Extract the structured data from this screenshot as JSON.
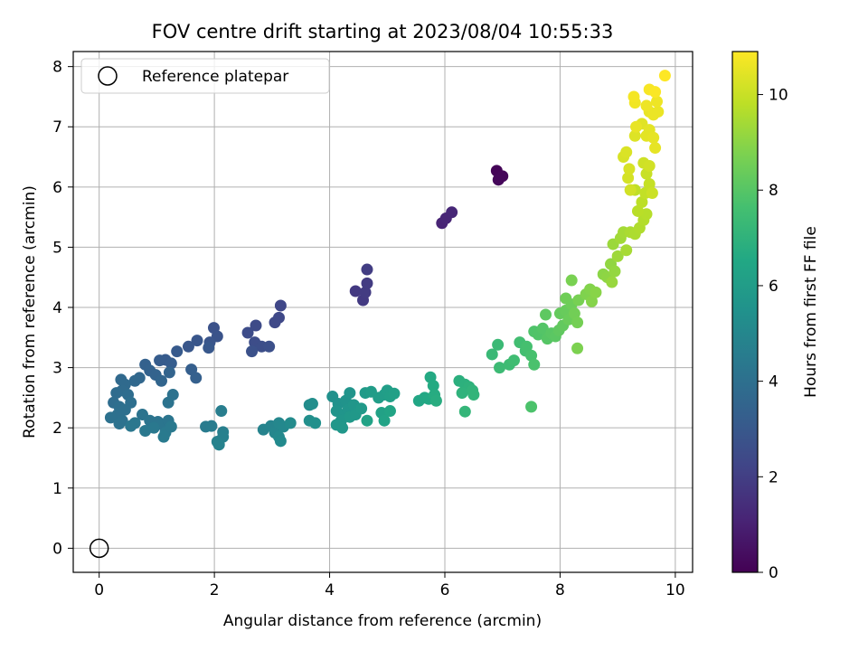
{
  "chart_data": {
    "type": "scatter",
    "title": "FOV centre drift starting at 2023/08/04 10:55:33",
    "xlabel": "Angular distance from reference (arcmin)",
    "ylabel": "Rotation from reference (arcmin)",
    "xlim": [
      -0.45,
      10.3
    ],
    "ylim": [
      -0.4,
      8.25
    ],
    "xticks": [
      0,
      2,
      4,
      6,
      8,
      10
    ],
    "yticks": [
      0,
      1,
      2,
      3,
      4,
      5,
      6,
      7,
      8
    ],
    "grid": true,
    "legend": {
      "placement": "top-left",
      "entries": [
        "Reference platepar"
      ]
    },
    "reference_point": {
      "x": 0,
      "y": 0,
      "label": "Reference platepar"
    },
    "colorbar": {
      "label": "Hours from first FF file",
      "min": 0,
      "max": 10.9,
      "ticks": [
        0,
        2,
        4,
        6,
        8,
        10
      ],
      "colormap": "viridis"
    },
    "points": [
      {
        "x": 6.9,
        "y": 6.27,
        "t": 0.1
      },
      {
        "x": 7.0,
        "y": 6.18,
        "t": 0.15
      },
      {
        "x": 6.93,
        "y": 6.12,
        "t": 0.2
      },
      {
        "x": 5.95,
        "y": 5.4,
        "t": 1.1
      },
      {
        "x": 6.02,
        "y": 5.48,
        "t": 1.15
      },
      {
        "x": 6.12,
        "y": 5.58,
        "t": 1.2
      },
      {
        "x": 4.45,
        "y": 4.27,
        "t": 1.8
      },
      {
        "x": 4.58,
        "y": 4.12,
        "t": 1.85
      },
      {
        "x": 4.62,
        "y": 4.25,
        "t": 1.9
      },
      {
        "x": 4.65,
        "y": 4.4,
        "t": 1.9
      },
      {
        "x": 4.65,
        "y": 4.63,
        "t": 1.95
      },
      {
        "x": 3.15,
        "y": 4.03,
        "t": 2.3
      },
      {
        "x": 3.12,
        "y": 3.83,
        "t": 2.35
      },
      {
        "x": 3.05,
        "y": 3.75,
        "t": 2.4
      },
      {
        "x": 2.72,
        "y": 3.7,
        "t": 2.45
      },
      {
        "x": 2.58,
        "y": 3.58,
        "t": 2.5
      },
      {
        "x": 2.7,
        "y": 3.42,
        "t": 2.55
      },
      {
        "x": 2.82,
        "y": 3.35,
        "t": 2.6
      },
      {
        "x": 2.95,
        "y": 3.35,
        "t": 2.65
      },
      {
        "x": 2.65,
        "y": 3.27,
        "t": 2.7
      },
      {
        "x": 1.99,
        "y": 3.66,
        "t": 2.75
      },
      {
        "x": 2.05,
        "y": 3.52,
        "t": 2.8
      },
      {
        "x": 1.92,
        "y": 3.42,
        "t": 2.85
      },
      {
        "x": 1.7,
        "y": 3.45,
        "t": 2.9
      },
      {
        "x": 1.55,
        "y": 3.35,
        "t": 2.95
      },
      {
        "x": 1.9,
        "y": 3.33,
        "t": 3.0
      },
      {
        "x": 1.35,
        "y": 3.27,
        "t": 3.05
      },
      {
        "x": 1.15,
        "y": 3.13,
        "t": 3.1
      },
      {
        "x": 1.05,
        "y": 3.12,
        "t": 3.15
      },
      {
        "x": 1.25,
        "y": 3.07,
        "t": 3.2
      },
      {
        "x": 1.6,
        "y": 2.97,
        "t": 3.25
      },
      {
        "x": 1.68,
        "y": 2.83,
        "t": 3.3
      },
      {
        "x": 0.8,
        "y": 3.05,
        "t": 3.35
      },
      {
        "x": 0.88,
        "y": 2.95,
        "t": 3.4
      },
      {
        "x": 0.98,
        "y": 2.88,
        "t": 3.45
      },
      {
        "x": 1.22,
        "y": 2.92,
        "t": 3.5
      },
      {
        "x": 1.08,
        "y": 2.78,
        "t": 3.55
      },
      {
        "x": 0.7,
        "y": 2.83,
        "t": 3.6
      },
      {
        "x": 0.62,
        "y": 2.78,
        "t": 3.65
      },
      {
        "x": 0.38,
        "y": 2.8,
        "t": 3.7
      },
      {
        "x": 0.45,
        "y": 2.72,
        "t": 3.75
      },
      {
        "x": 0.4,
        "y": 2.62,
        "t": 3.8
      },
      {
        "x": 0.3,
        "y": 2.58,
        "t": 3.85
      },
      {
        "x": 0.5,
        "y": 2.55,
        "t": 3.9
      },
      {
        "x": 0.25,
        "y": 2.42,
        "t": 3.9
      },
      {
        "x": 0.35,
        "y": 2.35,
        "t": 3.95
      },
      {
        "x": 0.55,
        "y": 2.42,
        "t": 3.95
      },
      {
        "x": 0.45,
        "y": 2.3,
        "t": 4.0
      },
      {
        "x": 0.32,
        "y": 2.22,
        "t": 4.0
      },
      {
        "x": 0.2,
        "y": 2.17,
        "t": 4.05
      },
      {
        "x": 0.4,
        "y": 2.12,
        "t": 4.05
      },
      {
        "x": 0.35,
        "y": 2.07,
        "t": 4.1
      },
      {
        "x": 1.28,
        "y": 2.55,
        "t": 4.1
      },
      {
        "x": 1.2,
        "y": 2.42,
        "t": 4.15
      },
      {
        "x": 0.75,
        "y": 2.22,
        "t": 4.15
      },
      {
        "x": 0.88,
        "y": 2.12,
        "t": 4.2
      },
      {
        "x": 1.02,
        "y": 2.1,
        "t": 4.2
      },
      {
        "x": 1.1,
        "y": 2.05,
        "t": 4.25
      },
      {
        "x": 1.2,
        "y": 2.12,
        "t": 4.25
      },
      {
        "x": 0.62,
        "y": 2.08,
        "t": 4.3
      },
      {
        "x": 0.55,
        "y": 2.03,
        "t": 4.3
      },
      {
        "x": 0.95,
        "y": 2.0,
        "t": 4.35
      },
      {
        "x": 0.8,
        "y": 1.95,
        "t": 4.35
      },
      {
        "x": 1.15,
        "y": 1.92,
        "t": 4.4
      },
      {
        "x": 1.25,
        "y": 2.02,
        "t": 4.4
      },
      {
        "x": 1.12,
        "y": 1.85,
        "t": 4.45
      },
      {
        "x": 1.85,
        "y": 2.02,
        "t": 4.5
      },
      {
        "x": 1.95,
        "y": 2.03,
        "t": 4.55
      },
      {
        "x": 2.12,
        "y": 2.28,
        "t": 4.6
      },
      {
        "x": 2.15,
        "y": 1.93,
        "t": 4.65
      },
      {
        "x": 2.15,
        "y": 1.85,
        "t": 4.7
      },
      {
        "x": 2.05,
        "y": 1.77,
        "t": 4.75
      },
      {
        "x": 2.08,
        "y": 1.72,
        "t": 4.8
      },
      {
        "x": 2.85,
        "y": 1.97,
        "t": 4.85
      },
      {
        "x": 2.98,
        "y": 2.03,
        "t": 4.9
      },
      {
        "x": 3.05,
        "y": 1.92,
        "t": 4.95
      },
      {
        "x": 3.12,
        "y": 2.08,
        "t": 5.0
      },
      {
        "x": 3.2,
        "y": 2.02,
        "t": 5.05
      },
      {
        "x": 3.12,
        "y": 1.85,
        "t": 5.1
      },
      {
        "x": 3.15,
        "y": 1.78,
        "t": 5.15
      },
      {
        "x": 3.32,
        "y": 2.08,
        "t": 5.2
      },
      {
        "x": 3.65,
        "y": 2.38,
        "t": 5.25
      },
      {
        "x": 3.7,
        "y": 2.4,
        "t": 5.3
      },
      {
        "x": 3.65,
        "y": 2.12,
        "t": 5.35
      },
      {
        "x": 3.75,
        "y": 2.08,
        "t": 5.4
      },
      {
        "x": 4.05,
        "y": 2.52,
        "t": 5.45
      },
      {
        "x": 4.15,
        "y": 2.4,
        "t": 5.5
      },
      {
        "x": 4.28,
        "y": 2.45,
        "t": 5.55
      },
      {
        "x": 4.35,
        "y": 2.58,
        "t": 5.6
      },
      {
        "x": 4.12,
        "y": 2.28,
        "t": 5.6
      },
      {
        "x": 4.25,
        "y": 2.22,
        "t": 5.65
      },
      {
        "x": 4.32,
        "y": 2.3,
        "t": 5.65
      },
      {
        "x": 4.42,
        "y": 2.38,
        "t": 5.7
      },
      {
        "x": 4.2,
        "y": 2.12,
        "t": 5.7
      },
      {
        "x": 4.12,
        "y": 2.05,
        "t": 5.75
      },
      {
        "x": 4.22,
        "y": 2.0,
        "t": 5.75
      },
      {
        "x": 4.35,
        "y": 2.18,
        "t": 5.8
      },
      {
        "x": 4.45,
        "y": 2.22,
        "t": 5.8
      },
      {
        "x": 4.55,
        "y": 2.32,
        "t": 5.85
      },
      {
        "x": 4.62,
        "y": 2.58,
        "t": 5.9
      },
      {
        "x": 4.72,
        "y": 2.6,
        "t": 5.95
      },
      {
        "x": 4.85,
        "y": 2.5,
        "t": 6.0
      },
      {
        "x": 4.95,
        "y": 2.55,
        "t": 6.0
      },
      {
        "x": 5.0,
        "y": 2.62,
        "t": 6.05
      },
      {
        "x": 5.05,
        "y": 2.52,
        "t": 6.1
      },
      {
        "x": 5.12,
        "y": 2.57,
        "t": 6.15
      },
      {
        "x": 4.9,
        "y": 2.25,
        "t": 6.2
      },
      {
        "x": 4.65,
        "y": 2.12,
        "t": 6.25
      },
      {
        "x": 4.95,
        "y": 2.12,
        "t": 6.3
      },
      {
        "x": 5.05,
        "y": 2.28,
        "t": 6.35
      },
      {
        "x": 5.55,
        "y": 2.45,
        "t": 6.45
      },
      {
        "x": 5.65,
        "y": 2.5,
        "t": 6.5
      },
      {
        "x": 5.72,
        "y": 2.48,
        "t": 6.55
      },
      {
        "x": 5.75,
        "y": 2.84,
        "t": 6.6
      },
      {
        "x": 5.8,
        "y": 2.7,
        "t": 6.65
      },
      {
        "x": 5.82,
        "y": 2.55,
        "t": 6.7
      },
      {
        "x": 5.85,
        "y": 2.45,
        "t": 6.75
      },
      {
        "x": 6.25,
        "y": 2.78,
        "t": 6.85
      },
      {
        "x": 6.35,
        "y": 2.72,
        "t": 6.9
      },
      {
        "x": 6.42,
        "y": 2.68,
        "t": 6.95
      },
      {
        "x": 6.3,
        "y": 2.58,
        "t": 7.0
      },
      {
        "x": 6.48,
        "y": 2.62,
        "t": 7.05
      },
      {
        "x": 6.5,
        "y": 2.55,
        "t": 7.1
      },
      {
        "x": 6.35,
        "y": 2.27,
        "t": 7.15
      },
      {
        "x": 6.82,
        "y": 3.22,
        "t": 7.3
      },
      {
        "x": 6.92,
        "y": 3.38,
        "t": 7.35
      },
      {
        "x": 6.95,
        "y": 3.0,
        "t": 7.4
      },
      {
        "x": 7.12,
        "y": 3.05,
        "t": 7.45
      },
      {
        "x": 7.2,
        "y": 3.12,
        "t": 7.5
      },
      {
        "x": 7.3,
        "y": 3.42,
        "t": 7.55
      },
      {
        "x": 7.4,
        "y": 3.28,
        "t": 7.6
      },
      {
        "x": 7.42,
        "y": 3.35,
        "t": 7.65
      },
      {
        "x": 7.5,
        "y": 3.2,
        "t": 7.7
      },
      {
        "x": 7.55,
        "y": 3.05,
        "t": 7.75
      },
      {
        "x": 7.5,
        "y": 2.35,
        "t": 7.8
      },
      {
        "x": 7.55,
        "y": 3.6,
        "t": 7.85
      },
      {
        "x": 7.62,
        "y": 3.55,
        "t": 7.9
      },
      {
        "x": 7.7,
        "y": 3.65,
        "t": 7.95
      },
      {
        "x": 7.78,
        "y": 3.48,
        "t": 8.0
      },
      {
        "x": 7.85,
        "y": 3.57,
        "t": 8.05
      },
      {
        "x": 7.92,
        "y": 3.52,
        "t": 8.1
      },
      {
        "x": 7.75,
        "y": 3.88,
        "t": 8.15
      },
      {
        "x": 7.98,
        "y": 3.62,
        "t": 8.2
      },
      {
        "x": 8.05,
        "y": 3.7,
        "t": 8.25
      },
      {
        "x": 8.0,
        "y": 3.9,
        "t": 8.3
      },
      {
        "x": 8.1,
        "y": 3.95,
        "t": 8.35
      },
      {
        "x": 8.15,
        "y": 3.8,
        "t": 8.4
      },
      {
        "x": 8.2,
        "y": 4.05,
        "t": 8.45
      },
      {
        "x": 8.1,
        "y": 4.15,
        "t": 8.5
      },
      {
        "x": 8.25,
        "y": 3.9,
        "t": 8.55
      },
      {
        "x": 8.3,
        "y": 3.75,
        "t": 8.6
      },
      {
        "x": 8.32,
        "y": 4.12,
        "t": 8.65
      },
      {
        "x": 8.2,
        "y": 4.45,
        "t": 8.7
      },
      {
        "x": 8.3,
        "y": 3.32,
        "t": 8.75
      },
      {
        "x": 8.45,
        "y": 4.22,
        "t": 8.8
      },
      {
        "x": 8.52,
        "y": 4.3,
        "t": 8.85
      },
      {
        "x": 8.55,
        "y": 4.1,
        "t": 8.9
      },
      {
        "x": 8.62,
        "y": 4.25,
        "t": 8.95
      },
      {
        "x": 8.75,
        "y": 4.55,
        "t": 9.0
      },
      {
        "x": 8.82,
        "y": 4.5,
        "t": 9.05
      },
      {
        "x": 8.88,
        "y": 4.72,
        "t": 9.1
      },
      {
        "x": 8.95,
        "y": 4.6,
        "t": 9.15
      },
      {
        "x": 8.9,
        "y": 4.42,
        "t": 9.2
      },
      {
        "x": 8.92,
        "y": 5.05,
        "t": 9.25
      },
      {
        "x": 9.0,
        "y": 4.85,
        "t": 9.3
      },
      {
        "x": 9.05,
        "y": 5.15,
        "t": 9.35
      },
      {
        "x": 9.1,
        "y": 5.25,
        "t": 9.4
      },
      {
        "x": 9.15,
        "y": 4.95,
        "t": 9.45
      },
      {
        "x": 9.22,
        "y": 5.25,
        "t": 9.5
      },
      {
        "x": 9.3,
        "y": 5.22,
        "t": 9.55
      },
      {
        "x": 9.38,
        "y": 5.32,
        "t": 9.6
      },
      {
        "x": 9.45,
        "y": 5.45,
        "t": 9.65
      },
      {
        "x": 9.5,
        "y": 5.55,
        "t": 9.7
      },
      {
        "x": 9.35,
        "y": 5.6,
        "t": 9.75
      },
      {
        "x": 9.42,
        "y": 5.75,
        "t": 9.8
      },
      {
        "x": 9.3,
        "y": 5.95,
        "t": 9.85
      },
      {
        "x": 9.48,
        "y": 5.9,
        "t": 9.9
      },
      {
        "x": 9.55,
        "y": 6.05,
        "t": 9.95
      },
      {
        "x": 9.5,
        "y": 6.22,
        "t": 10.0
      },
      {
        "x": 9.6,
        "y": 5.9,
        "t": 10.05
      },
      {
        "x": 9.45,
        "y": 6.4,
        "t": 10.1
      },
      {
        "x": 9.55,
        "y": 6.35,
        "t": 10.15
      },
      {
        "x": 9.22,
        "y": 5.95,
        "t": 10.15
      },
      {
        "x": 9.18,
        "y": 6.15,
        "t": 10.2
      },
      {
        "x": 9.2,
        "y": 6.3,
        "t": 10.25
      },
      {
        "x": 9.1,
        "y": 6.5,
        "t": 10.25
      },
      {
        "x": 9.15,
        "y": 6.58,
        "t": 10.3
      },
      {
        "x": 9.3,
        "y": 6.85,
        "t": 10.35
      },
      {
        "x": 9.42,
        "y": 7.05,
        "t": 10.4
      },
      {
        "x": 9.5,
        "y": 6.85,
        "t": 10.45
      },
      {
        "x": 9.55,
        "y": 6.95,
        "t": 10.45
      },
      {
        "x": 9.62,
        "y": 6.82,
        "t": 10.5
      },
      {
        "x": 9.65,
        "y": 6.65,
        "t": 10.5
      },
      {
        "x": 9.32,
        "y": 7.0,
        "t": 10.55
      },
      {
        "x": 9.55,
        "y": 7.25,
        "t": 10.55
      },
      {
        "x": 9.62,
        "y": 7.2,
        "t": 10.6
      },
      {
        "x": 9.7,
        "y": 7.25,
        "t": 10.6
      },
      {
        "x": 9.5,
        "y": 7.35,
        "t": 10.65
      },
      {
        "x": 9.68,
        "y": 7.42,
        "t": 10.65
      },
      {
        "x": 9.3,
        "y": 7.4,
        "t": 10.7
      },
      {
        "x": 9.28,
        "y": 7.5,
        "t": 10.75
      },
      {
        "x": 9.55,
        "y": 7.62,
        "t": 10.8
      },
      {
        "x": 9.65,
        "y": 7.58,
        "t": 10.85
      },
      {
        "x": 9.82,
        "y": 7.85,
        "t": 10.9
      }
    ]
  }
}
